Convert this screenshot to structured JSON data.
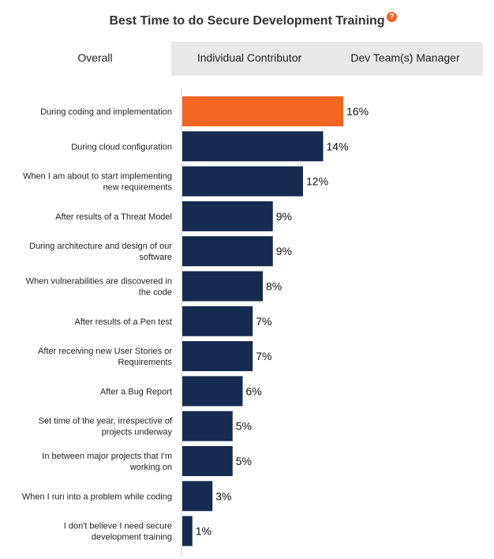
{
  "title": "Best Time to do Secure Development Training",
  "help_icon": "?",
  "tabs": [
    {
      "label": "Overall",
      "active": true
    },
    {
      "label": "Individual Contributor",
      "active": false
    },
    {
      "label": "Dev Team(s) Manager",
      "active": false
    }
  ],
  "colors": {
    "highlight": "#f26522",
    "bar": "#172a4f",
    "help": "#f26522"
  },
  "chart_data": {
    "type": "bar",
    "orientation": "horizontal",
    "categories": [
      [
        "During coding and implementation"
      ],
      [
        "During cloud configuration"
      ],
      [
        "When I am about to start implementing",
        "new requirements"
      ],
      [
        "After results of a Threat Model"
      ],
      [
        "During architecture and design of our",
        "software"
      ],
      [
        "When vulnerabilities are discovered in",
        "the code"
      ],
      [
        "After results of a Pen test"
      ],
      [
        "After receiving new User Stories or",
        "Requirements"
      ],
      [
        "After a Bug Report"
      ],
      [
        "Set time of the year, irrespective of",
        "projects underway"
      ],
      [
        "In between major projects that I'm",
        "working on"
      ],
      [
        "When I run into a problem while coding"
      ],
      [
        "I don't believe I need secure",
        "development training"
      ]
    ],
    "values": [
      16,
      14,
      12,
      9,
      9,
      8,
      7,
      7,
      6,
      5,
      5,
      3,
      1
    ],
    "value_labels": [
      "16%",
      "14%",
      "12%",
      "9%",
      "9%",
      "8%",
      "7%",
      "7%",
      "6%",
      "5%",
      "5%",
      "3%",
      "1%"
    ],
    "highlight_index": 0,
    "xmax": 16
  }
}
